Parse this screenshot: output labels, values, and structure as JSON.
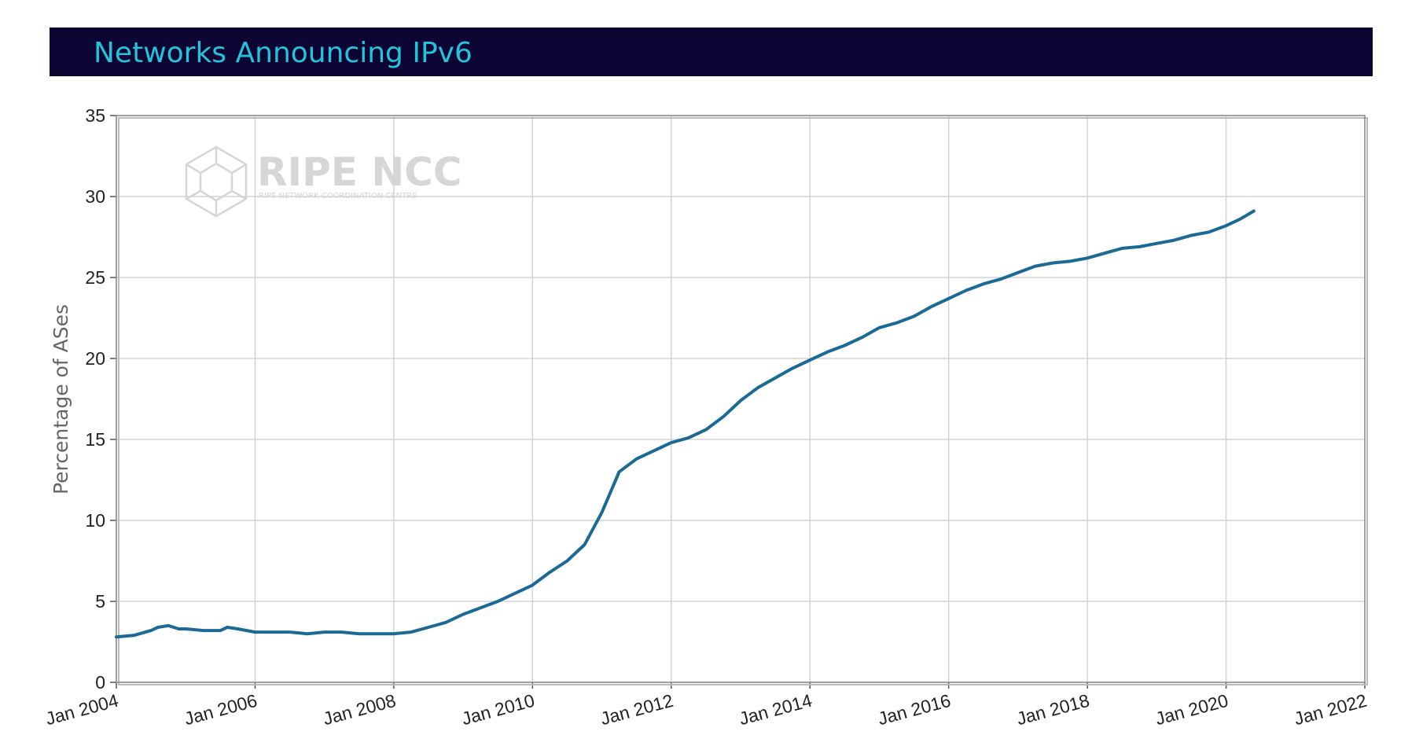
{
  "header": {
    "title": "Networks Announcing IPv6"
  },
  "watermark": {
    "name": "RIPE NCC",
    "subtitle": "RIPE NETWORK COORDINATION CENTRE"
  },
  "colors": {
    "header_bg": "#0c0433",
    "title": "#22c4d9",
    "line": "#1b6a95",
    "grid": "#d3d3d3"
  },
  "chart_data": {
    "type": "line",
    "title": "Networks Announcing IPv6",
    "ylabel": "Percentage of ASes",
    "xlabel": "",
    "xlim": [
      2004.0,
      2022.0
    ],
    "ylim": [
      0,
      35
    ],
    "y_ticks": [
      0,
      5,
      10,
      15,
      20,
      25,
      30,
      35
    ],
    "x_ticks": [
      {
        "value": 2004,
        "label": "Jan 2004"
      },
      {
        "value": 2006,
        "label": "Jan 2006"
      },
      {
        "value": 2008,
        "label": "Jan 2008"
      },
      {
        "value": 2010,
        "label": "Jan 2010"
      },
      {
        "value": 2012,
        "label": "Jan 2012"
      },
      {
        "value": 2014,
        "label": "Jan 2014"
      },
      {
        "value": 2016,
        "label": "Jan 2016"
      },
      {
        "value": 2018,
        "label": "Jan 2018"
      },
      {
        "value": 2020,
        "label": "Jan 2020"
      },
      {
        "value": 2022,
        "label": "Jan 2022"
      }
    ],
    "grid": true,
    "series": [
      {
        "x": [
          2004.0,
          2004.25,
          2004.5,
          2004.6,
          2004.75,
          2004.9,
          2005.0,
          2005.25,
          2005.5,
          2005.6,
          2005.75,
          2006.0,
          2006.25,
          2006.5,
          2006.75,
          2007.0,
          2007.25,
          2007.5,
          2007.75,
          2008.0,
          2008.25,
          2008.5,
          2008.75,
          2009.0,
          2009.25,
          2009.5,
          2009.75,
          2010.0,
          2010.25,
          2010.5,
          2010.75,
          2011.0,
          2011.25,
          2011.5,
          2011.75,
          2012.0,
          2012.25,
          2012.5,
          2012.75,
          2013.0,
          2013.25,
          2013.5,
          2013.75,
          2014.0,
          2014.25,
          2014.5,
          2014.75,
          2015.0,
          2015.25,
          2015.5,
          2015.75,
          2016.0,
          2016.25,
          2016.5,
          2016.75,
          2017.0,
          2017.25,
          2017.5,
          2017.75,
          2018.0,
          2018.25,
          2018.5,
          2018.75,
          2019.0,
          2019.25,
          2019.5,
          2019.75,
          2020.0,
          2020.2,
          2020.4
        ],
        "values": [
          2.8,
          2.9,
          3.2,
          3.4,
          3.5,
          3.3,
          3.3,
          3.2,
          3.2,
          3.4,
          3.3,
          3.1,
          3.1,
          3.1,
          3.0,
          3.1,
          3.1,
          3.0,
          3.0,
          3.0,
          3.1,
          3.4,
          3.7,
          4.2,
          4.6,
          5.0,
          5.5,
          6.0,
          6.8,
          7.5,
          8.5,
          10.5,
          13.0,
          13.8,
          14.3,
          14.8,
          15.1,
          15.6,
          16.4,
          17.4,
          18.2,
          18.8,
          19.4,
          19.9,
          20.4,
          20.8,
          21.3,
          21.9,
          22.2,
          22.6,
          23.2,
          23.7,
          24.2,
          24.6,
          24.9,
          25.3,
          25.7,
          25.9,
          26.0,
          26.2,
          26.5,
          26.8,
          26.9,
          27.1,
          27.3,
          27.6,
          27.8,
          28.2,
          28.6,
          29.1
        ]
      }
    ]
  }
}
